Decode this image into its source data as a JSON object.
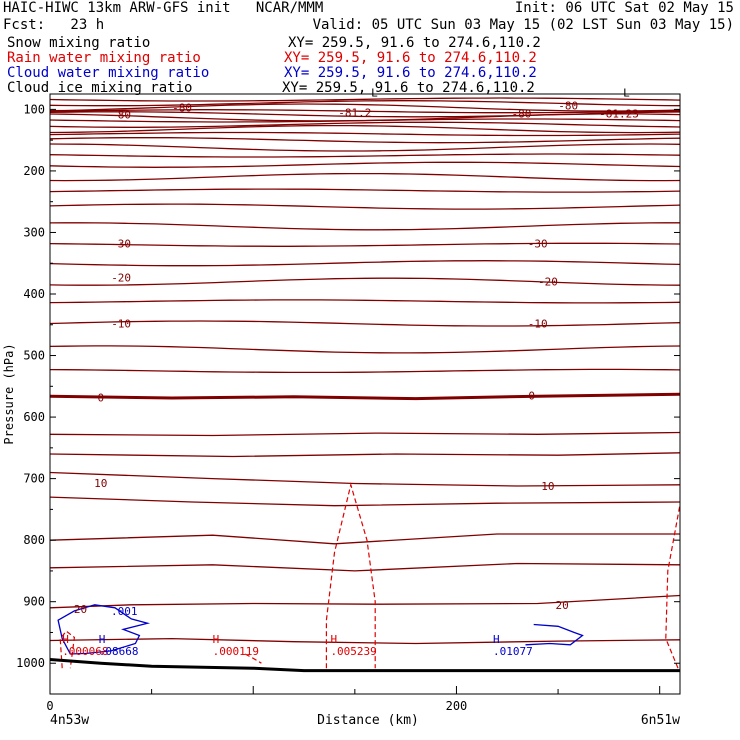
{
  "header": {
    "title": "HAIC-HIWC 13km ARW-GFS init   NCAR/MMM",
    "init": "Init: 06 UTC Sat 02 May 15",
    "fcst": "Fcst:   23 h",
    "valid": "Valid: 05 UTC Sun 03 May 15 (02 LST Sun 03 May 15)"
  },
  "fields": [
    {
      "name": "Snow mixing ratio",
      "xy": "XY= 259.5, 91.6 to 274.6,110.2",
      "color": "#000000"
    },
    {
      "name": "Rain water mixing ratio",
      "xy": "XY= 259.5, 91.6 to 274.6,110.2",
      "color": "#e00000"
    },
    {
      "name": "Cloud water mixing ratio",
      "xy": "XY= 259.5, 91.6 to 274.6,110.2",
      "color": "#0000cc"
    },
    {
      "name": "Cloud ice mixing ratio",
      "xy": "XY= 259.5, 91.6 to 274.6,110.2",
      "color": "#000000"
    }
  ],
  "colors": {
    "temperature": "#800000",
    "rain": "#e00000",
    "cloud": "#0000cc",
    "terrain": "#000000"
  },
  "chart_data": {
    "type": "line",
    "xlabel": "Distance (km)",
    "ylabel": "Pressure (hPa)",
    "xlim": [
      0,
      310
    ],
    "ylim": [
      1050,
      75
    ],
    "x_ticks": [
      "0",
      "200"
    ],
    "y_ticks": [
      100,
      200,
      300,
      400,
      500,
      600,
      700,
      800,
      900,
      1000
    ],
    "endpoints": {
      "left": "4n53w",
      "right": "6n51w"
    },
    "isotherm_labels": [
      {
        "text": "-80",
        "x": 65,
        "p": 97
      },
      {
        "text": "-80",
        "x": 35,
        "p": 108
      },
      {
        "text": "-81.2",
        "x": 150,
        "p": 105
      },
      {
        "text": "-80",
        "x": 232,
        "p": 107
      },
      {
        "text": "-80",
        "x": 255,
        "p": 94
      },
      {
        "text": "-81.23",
        "x": 280,
        "p": 107
      },
      {
        "text": "-30",
        "x": 35,
        "p": 318
      },
      {
        "text": "-30",
        "x": 240,
        "p": 318
      },
      {
        "text": "-20",
        "x": 35,
        "p": 373
      },
      {
        "text": "-20",
        "x": 245,
        "p": 380
      },
      {
        "text": "-10",
        "x": 35,
        "p": 448
      },
      {
        "text": "-10",
        "x": 240,
        "p": 448
      },
      {
        "text": "0",
        "x": 25,
        "p": 568
      },
      {
        "text": "0",
        "x": 237,
        "p": 565
      },
      {
        "text": "10",
        "x": 25,
        "p": 707
      },
      {
        "text": "10",
        "x": 245,
        "p": 712
      },
      {
        "text": "20",
        "x": 15,
        "p": 912
      },
      {
        "text": "20",
        "x": 252,
        "p": 905
      }
    ],
    "extrema_labels": [
      {
        "letter": "L",
        "value": "",
        "x": 158,
        "p": 92,
        "color": "#000000"
      },
      {
        "letter": "L",
        "value": "",
        "x": 282,
        "p": 92,
        "color": "#000000"
      },
      {
        "letter": "H",
        "value": ".000068",
        "x": 6,
        "p": 980,
        "color": "#e00000"
      },
      {
        "letter": "H",
        "value": ".08668",
        "x": 24,
        "p": 980,
        "color": "#0000cc"
      },
      {
        "letter": "H",
        "value": ".000119",
        "x": 80,
        "p": 980,
        "color": "#e00000"
      },
      {
        "letter": "H",
        "value": ".005239",
        "x": 138,
        "p": 980,
        "color": "#e00000"
      },
      {
        "letter": "H",
        "value": ".01077",
        "x": 218,
        "p": 980,
        "color": "#0000cc"
      },
      {
        "letter": "",
        "value": ".001",
        "x": 30,
        "p": 915,
        "color": "#0000cc"
      }
    ]
  }
}
